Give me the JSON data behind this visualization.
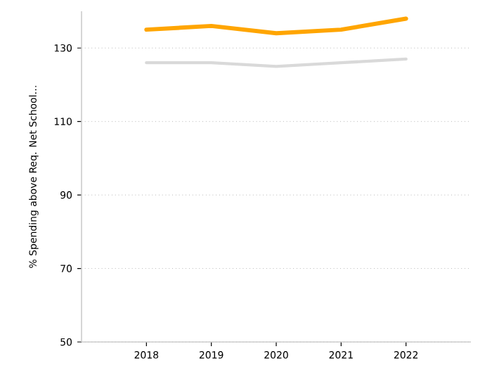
{
  "chart_data": {
    "type": "line",
    "ylabel": "% Spending above Req. Net School…",
    "categories": [
      "2018",
      "2019",
      "2020",
      "2021",
      "2022"
    ],
    "series": [
      {
        "color": "#ffa500",
        "values": [
          135,
          136,
          134,
          135,
          138
        ]
      },
      {
        "color": "#d9d9d9",
        "values": [
          126,
          126,
          125,
          126,
          127
        ]
      }
    ],
    "ylim": [
      50,
      140
    ],
    "yticks": [
      50,
      70,
      90,
      110,
      130
    ],
    "grid": "y",
    "legend": false,
    "marker": "none",
    "line_style": "solid"
  }
}
